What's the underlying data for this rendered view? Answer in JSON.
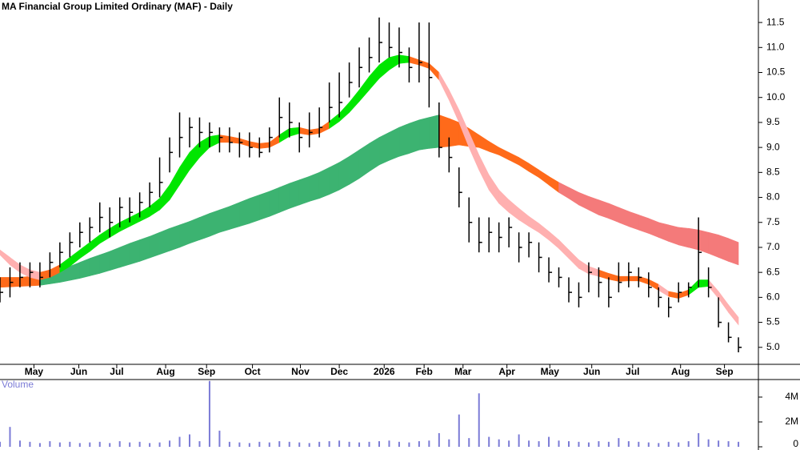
{
  "chart_data": {
    "type": "ohlc",
    "title": "MA Financial Group Limited Ordinary (MAF) - Daily",
    "x": [
      0,
      1,
      2,
      3,
      4,
      5,
      6,
      7,
      8,
      9,
      10,
      11,
      12,
      13,
      14,
      15,
      16,
      17,
      18,
      19,
      20,
      21,
      22,
      23,
      24,
      25,
      26,
      27,
      28,
      29,
      30,
      31,
      32,
      33,
      34,
      35,
      36,
      37,
      38,
      39,
      40,
      41,
      42,
      43,
      44,
      45,
      46,
      47,
      48,
      49,
      50,
      51,
      52,
      53,
      54,
      55,
      56,
      57,
      58,
      59,
      60,
      61,
      62,
      63,
      64,
      65,
      66,
      67,
      68,
      69,
      70,
      71,
      72,
      73,
      74
    ],
    "high": [
      6.4,
      6.6,
      6.7,
      6.7,
      6.7,
      6.9,
      7.1,
      7.3,
      7.5,
      7.6,
      7.9,
      7.8,
      8.0,
      8.0,
      8.1,
      8.3,
      8.8,
      9.2,
      9.7,
      9.6,
      9.6,
      9.5,
      9.4,
      9.4,
      9.3,
      9.3,
      9.2,
      9.4,
      10.0,
      9.9,
      9.5,
      9.7,
      9.8,
      10.3,
      10.5,
      10.7,
      11.0,
      11.2,
      11.6,
      11.5,
      11.4,
      11.0,
      11.5,
      11.5,
      9.9,
      9.2,
      8.6,
      8.0,
      7.6,
      7.6,
      7.5,
      7.6,
      7.3,
      7.3,
      7.1,
      6.8,
      6.6,
      6.4,
      6.3,
      6.7,
      6.6,
      6.4,
      6.7,
      6.7,
      6.6,
      6.5,
      6.2,
      6.0,
      6.3,
      6.3,
      7.6,
      6.6,
      6.0,
      5.5,
      5.2
    ],
    "low": [
      5.9,
      6.0,
      6.2,
      6.2,
      6.2,
      6.4,
      6.6,
      6.8,
      7.0,
      7.1,
      7.3,
      7.2,
      7.4,
      7.5,
      7.6,
      7.8,
      8.0,
      8.5,
      8.8,
      9.0,
      9.0,
      9.0,
      8.9,
      8.9,
      8.8,
      8.8,
      8.8,
      8.9,
      9.2,
      9.2,
      8.9,
      9.0,
      9.2,
      9.5,
      9.6,
      10.0,
      10.2,
      10.5,
      10.7,
      10.8,
      10.6,
      10.3,
      10.3,
      9.8,
      8.8,
      8.5,
      7.8,
      7.1,
      6.9,
      6.9,
      6.9,
      7.0,
      6.7,
      6.8,
      6.5,
      6.3,
      6.2,
      5.9,
      5.8,
      6.1,
      6.0,
      5.8,
      6.1,
      6.2,
      6.2,
      6.0,
      5.8,
      5.6,
      5.9,
      6.0,
      6.2,
      6.0,
      5.4,
      5.1,
      4.9
    ],
    "close": [
      6.1,
      6.3,
      6.4,
      6.5,
      6.4,
      6.7,
      6.9,
      7.1,
      7.3,
      7.4,
      7.6,
      7.5,
      7.8,
      7.7,
      7.9,
      8.1,
      8.3,
      8.9,
      9.2,
      9.4,
      9.3,
      9.3,
      9.2,
      9.1,
      9.1,
      9.0,
      8.9,
      9.2,
      9.6,
      9.5,
      9.2,
      9.3,
      9.4,
      9.8,
      9.9,
      10.3,
      10.6,
      10.8,
      11.1,
      11.0,
      10.9,
      10.6,
      10.7,
      10.4,
      9.0,
      8.8,
      8.1,
      7.5,
      7.1,
      7.3,
      7.2,
      7.4,
      7.0,
      7.1,
      6.8,
      6.5,
      6.4,
      6.1,
      6.0,
      6.5,
      6.3,
      6.0,
      6.3,
      6.5,
      6.4,
      6.2,
      6.0,
      5.8,
      6.1,
      6.2,
      6.9,
      6.2,
      5.5,
      5.2,
      5.0
    ],
    "bar_color": "#000000",
    "bands": [
      {
        "upper": [
          6.4,
          6.4,
          6.4,
          6.42,
          6.45,
          6.5,
          6.55,
          6.62,
          6.7,
          6.78,
          6.85,
          6.92,
          7.0,
          7.08,
          7.15,
          7.22,
          7.3,
          7.38,
          7.45,
          7.52,
          7.6,
          7.68,
          7.75,
          7.82,
          7.9,
          7.98,
          8.05,
          8.12,
          8.2,
          8.28,
          8.35,
          8.42,
          8.5,
          8.6,
          8.7,
          8.82,
          8.95,
          9.08,
          9.2,
          9.3,
          9.4,
          9.48,
          9.55,
          9.6,
          9.65,
          9.58,
          9.5,
          9.38,
          9.25,
          9.12,
          9.0,
          8.9,
          8.8,
          8.68,
          8.55,
          8.42,
          8.3,
          8.2,
          8.1,
          8.02,
          7.95,
          7.88,
          7.8,
          7.72,
          7.65,
          7.58,
          7.5,
          7.45,
          7.4,
          7.38,
          7.35,
          7.3,
          7.25,
          7.18,
          7.1
        ],
        "lower": [
          6.2,
          6.21,
          6.22,
          6.23,
          6.24,
          6.27,
          6.3,
          6.34,
          6.38,
          6.43,
          6.48,
          6.54,
          6.6,
          6.66,
          6.72,
          6.79,
          6.86,
          6.93,
          7.0,
          7.08,
          7.15,
          7.22,
          7.3,
          7.36,
          7.42,
          7.48,
          7.55,
          7.62,
          7.7,
          7.78,
          7.85,
          7.92,
          7.98,
          8.06,
          8.15,
          8.26,
          8.38,
          8.52,
          8.65,
          8.74,
          8.82,
          8.88,
          8.95,
          8.98,
          9.0,
          9.02,
          9.05,
          9.02,
          9.0,
          8.92,
          8.85,
          8.75,
          8.65,
          8.52,
          8.4,
          8.25,
          8.1,
          7.98,
          7.85,
          7.75,
          7.65,
          7.58,
          7.5,
          7.42,
          7.35,
          7.28,
          7.2,
          7.12,
          7.05,
          7.0,
          6.95,
          6.88,
          6.8,
          6.72,
          6.65
        ],
        "colors": [
          "#ff6a1a",
          "#ff6a1a",
          "#ff6a1a",
          "#ff6a1a",
          "#3cb371",
          "#3cb371",
          "#3cb371",
          "#3cb371",
          "#3cb371",
          "#3cb371",
          "#3cb371",
          "#3cb371",
          "#3cb371",
          "#3cb371",
          "#3cb371",
          "#3cb371",
          "#3cb371",
          "#3cb371",
          "#3cb371",
          "#3cb371",
          "#3cb371",
          "#3cb371",
          "#3cb371",
          "#3cb371",
          "#3cb371",
          "#3cb371",
          "#3cb371",
          "#3cb371",
          "#3cb371",
          "#3cb371",
          "#3cb371",
          "#3cb371",
          "#3cb371",
          "#3cb371",
          "#3cb371",
          "#3cb371",
          "#3cb371",
          "#3cb371",
          "#3cb371",
          "#3cb371",
          "#3cb371",
          "#3cb371",
          "#3cb371",
          "#3cb371",
          "#ff6a1a",
          "#ff6a1a",
          "#ff6a1a",
          "#ff6a1a",
          "#ff6a1a",
          "#ff6a1a",
          "#ff6a1a",
          "#ff6a1a",
          "#ff6a1a",
          "#ff6a1a",
          "#ff6a1a",
          "#ff6a1a",
          "#f47a7a",
          "#f47a7a",
          "#f47a7a",
          "#f47a7a",
          "#f47a7a",
          "#f47a7a",
          "#f47a7a",
          "#f47a7a",
          "#f47a7a",
          "#f47a7a",
          "#f47a7a",
          "#f47a7a",
          "#f47a7a",
          "#f47a7a",
          "#f47a7a",
          "#f47a7a",
          "#f47a7a",
          "#f47a7a",
          "#f47a7a"
        ]
      },
      {
        "upper": [
          6.95,
          6.8,
          6.65,
          6.55,
          6.5,
          6.55,
          6.65,
          6.8,
          6.95,
          7.1,
          7.25,
          7.38,
          7.5,
          7.6,
          7.7,
          7.82,
          7.98,
          8.25,
          8.6,
          8.9,
          9.1,
          9.22,
          9.25,
          9.22,
          9.18,
          9.12,
          9.08,
          9.1,
          9.25,
          9.38,
          9.4,
          9.35,
          9.38,
          9.52,
          9.68,
          9.9,
          10.15,
          10.42,
          10.65,
          10.8,
          10.85,
          10.82,
          10.75,
          10.68,
          10.5,
          10.15,
          9.75,
          9.3,
          8.85,
          8.45,
          8.15,
          7.95,
          7.78,
          7.62,
          7.48,
          7.32,
          7.15,
          6.95,
          6.75,
          6.62,
          6.55,
          6.48,
          6.42,
          6.42,
          6.42,
          6.36,
          6.26,
          6.12,
          6.08,
          6.15,
          6.35,
          6.35,
          6.12,
          5.85,
          5.6
        ],
        "lower": [
          6.85,
          6.65,
          6.5,
          6.4,
          6.35,
          6.4,
          6.5,
          6.62,
          6.78,
          6.92,
          7.08,
          7.2,
          7.32,
          7.42,
          7.52,
          7.62,
          7.75,
          7.95,
          8.25,
          8.55,
          8.8,
          9.0,
          9.1,
          9.1,
          9.08,
          9.02,
          8.98,
          9.0,
          9.1,
          9.22,
          9.28,
          9.25,
          9.28,
          9.38,
          9.52,
          9.7,
          9.92,
          10.15,
          10.38,
          10.55,
          10.68,
          10.7,
          10.65,
          10.58,
          10.35,
          9.95,
          9.5,
          9.0,
          8.55,
          8.15,
          7.88,
          7.7,
          7.55,
          7.42,
          7.3,
          7.15,
          6.98,
          6.78,
          6.58,
          6.47,
          6.42,
          6.36,
          6.32,
          6.33,
          6.33,
          6.26,
          6.14,
          6.02,
          5.98,
          6.05,
          6.2,
          6.22,
          5.98,
          5.7,
          5.45
        ],
        "colors": [
          "#ffb0b0",
          "#ffb0b0",
          "#ffb0b0",
          "#ffb0b0",
          "#ff6a1a",
          "#ff6a1a",
          "#00e600",
          "#00e600",
          "#00e600",
          "#00e600",
          "#00e600",
          "#00e600",
          "#00e600",
          "#00e600",
          "#00e600",
          "#00e600",
          "#00e600",
          "#00e600",
          "#00e600",
          "#00e600",
          "#00e600",
          "#00e600",
          "#ff6a1a",
          "#ff6a1a",
          "#ff6a1a",
          "#ff6a1a",
          "#ff6a1a",
          "#ff6a1a",
          "#00e600",
          "#00e600",
          "#ff6a1a",
          "#ff6a1a",
          "#ff6a1a",
          "#00e600",
          "#00e600",
          "#00e600",
          "#00e600",
          "#00e600",
          "#00e600",
          "#00e600",
          "#00e600",
          "#ff6a1a",
          "#ff6a1a",
          "#ff6a1a",
          "#ffb0b0",
          "#ffb0b0",
          "#ffb0b0",
          "#ffb0b0",
          "#ffb0b0",
          "#ffb0b0",
          "#ffb0b0",
          "#ffb0b0",
          "#ffb0b0",
          "#ffb0b0",
          "#ffb0b0",
          "#ffb0b0",
          "#ffb0b0",
          "#ffb0b0",
          "#ffb0b0",
          "#ffb0b0",
          "#ff6a1a",
          "#ff6a1a",
          "#ff6a1a",
          "#ff6a1a",
          "#ff6a1a",
          "#ff6a1a",
          "#ffb0b0",
          "#ff6a1a",
          "#ff6a1a",
          "#00e600",
          "#00e600",
          "#ffb0b0",
          "#ffb0b0",
          "#ffb0b0",
          "#ffb0b0"
        ]
      }
    ],
    "xlim": [
      0,
      76
    ],
    "xticks": [
      {
        "value": 3.4,
        "label": "May"
      },
      {
        "value": 7.9,
        "label": "Jun"
      },
      {
        "value": 11.7,
        "label": "Jul"
      },
      {
        "value": 16.6,
        "label": "Aug"
      },
      {
        "value": 20.7,
        "label": "Sep"
      },
      {
        "value": 25.3,
        "label": "Oct"
      },
      {
        "value": 30.1,
        "label": "Nov"
      },
      {
        "value": 34,
        "label": "Dec"
      },
      {
        "value": 38.5,
        "label": "2026"
      },
      {
        "value": 42.5,
        "label": "Feb"
      },
      {
        "value": 46.4,
        "label": "Mar"
      },
      {
        "value": 50.8,
        "label": "Apr"
      },
      {
        "value": 55.1,
        "label": "May"
      },
      {
        "value": 59.3,
        "label": "Jun"
      },
      {
        "value": 63.4,
        "label": "Jul"
      },
      {
        "value": 68.2,
        "label": "Aug"
      },
      {
        "value": 72.6,
        "label": "Sep"
      }
    ],
    "ylim": [
      4.66,
      11.95
    ],
    "yticks": [
      {
        "value": 5,
        "label": "5.0"
      },
      5.5,
      {
        "value": 6,
        "label": "6.0"
      },
      6.5,
      {
        "value": 7,
        "label": "7.0"
      },
      7.5,
      {
        "value": 8,
        "label": "8.0"
      },
      8.5,
      {
        "value": 9,
        "label": "9.0"
      },
      9.5,
      {
        "value": 10,
        "label": "10.0"
      },
      10.5,
      {
        "value": 11,
        "label": "11.0"
      },
      11.5
    ],
    "volume": {
      "label": "Volume",
      "color": "#7b7bd6",
      "values": [
        400000,
        1600000,
        500000,
        400000,
        300000,
        450000,
        350000,
        400000,
        300000,
        350000,
        400000,
        300000,
        450000,
        350000,
        400000,
        300000,
        350000,
        500000,
        800000,
        1000000,
        450000,
        5300000,
        1300000,
        400000,
        350000,
        300000,
        400000,
        350000,
        450000,
        400000,
        350000,
        300000,
        400000,
        450000,
        500000,
        400000,
        350000,
        400000,
        450000,
        500000,
        400000,
        350000,
        450000,
        500000,
        1100000,
        600000,
        2600000,
        700000,
        4300000,
        800000,
        600000,
        500000,
        1000000,
        500000,
        450000,
        800000,
        500000,
        450000,
        400000,
        350000,
        450000,
        400000,
        700000,
        450000,
        400000,
        350000,
        300000,
        400000,
        350000,
        450000,
        1100000,
        600000,
        500000,
        450000,
        400000
      ],
      "ylim": [
        0,
        5350000
      ],
      "yticks": [
        0,
        {
          "value": 2000000,
          "label": "2M"
        },
        {
          "value": 4000000,
          "label": "4M"
        }
      ]
    }
  }
}
